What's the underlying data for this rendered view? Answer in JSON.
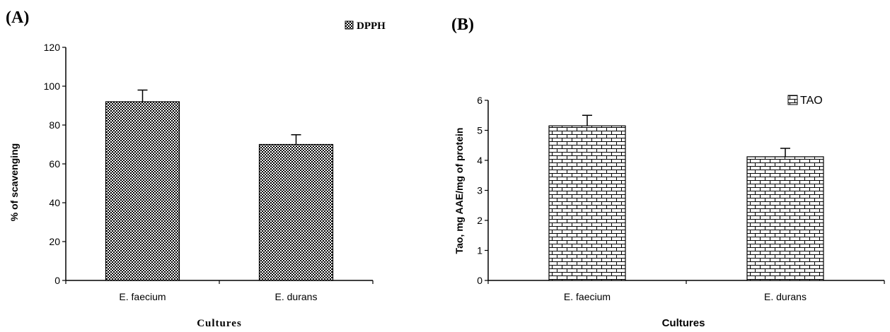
{
  "chart_data": [
    {
      "type": "bar",
      "panel": "(A)",
      "categories": [
        "E. faecium",
        "E. durans"
      ],
      "series": [
        {
          "name": "DPPH",
          "values": [
            92,
            70
          ],
          "errors": [
            6,
            5
          ]
        }
      ],
      "xlabel": "Cultures",
      "ylabel": "% of scavenging",
      "ylim": [
        0,
        120
      ],
      "yticks": [
        "0",
        "20",
        "40",
        "60",
        "80",
        "100",
        "120"
      ],
      "legend": "top-right",
      "grid": false,
      "pattern": "dotted"
    },
    {
      "type": "bar",
      "panel": "(B)",
      "categories": [
        "E. faecium",
        "E. durans"
      ],
      "series": [
        {
          "name": "TAO",
          "values": [
            5.15,
            4.12
          ],
          "errors": [
            0.35,
            0.28
          ]
        }
      ],
      "xlabel": "Cultures",
      "ylabel": "Tao, mg AAE/mg of protein",
      "ylim": [
        0,
        6
      ],
      "yticks": [
        "0",
        "1",
        "2",
        "3",
        "4",
        "5",
        "6"
      ],
      "legend": "top-right",
      "grid": false,
      "pattern": "brick"
    }
  ]
}
